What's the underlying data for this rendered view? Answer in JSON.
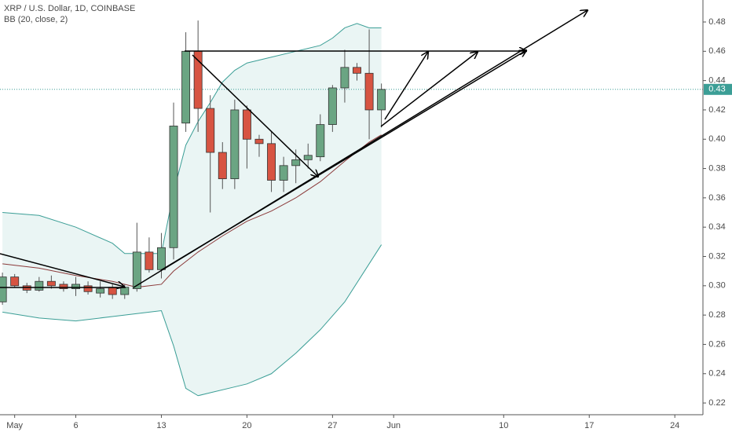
{
  "chart_data": {
    "type": "candlestick",
    "title": "XRP / U.S. Dollar, 1D, COINBASE",
    "subtitle": "BB (20, close, 2)",
    "x": [
      0,
      1,
      2,
      3,
      4,
      5,
      6,
      7,
      8,
      9,
      10,
      11,
      12,
      13,
      14,
      15,
      16,
      17,
      18,
      19,
      20,
      21,
      22,
      23,
      24,
      25,
      26,
      27,
      28,
      29,
      30,
      31
    ],
    "open": [
      0.289,
      0.306,
      0.3,
      0.297,
      0.303,
      0.301,
      0.298,
      0.3,
      0.295,
      0.299,
      0.294,
      0.298,
      0.323,
      0.311,
      0.326,
      0.411,
      0.46,
      0.421,
      0.391,
      0.373,
      0.42,
      0.4,
      0.397,
      0.372,
      0.382,
      0.386,
      0.388,
      0.41,
      0.435,
      0.449,
      0.445,
      0.42
    ],
    "high": [
      0.309,
      0.308,
      0.302,
      0.306,
      0.307,
      0.303,
      0.306,
      0.303,
      0.303,
      0.301,
      0.301,
      0.343,
      0.333,
      0.336,
      0.425,
      0.473,
      0.481,
      0.43,
      0.398,
      0.427,
      0.423,
      0.403,
      0.405,
      0.388,
      0.393,
      0.397,
      0.417,
      0.437,
      0.461,
      0.452,
      0.475,
      0.438
    ],
    "low": [
      0.287,
      0.299,
      0.295,
      0.296,
      0.298,
      0.296,
      0.293,
      0.294,
      0.292,
      0.291,
      0.291,
      0.296,
      0.309,
      0.305,
      0.318,
      0.405,
      0.405,
      0.35,
      0.366,
      0.366,
      0.38,
      0.388,
      0.364,
      0.364,
      0.37,
      0.38,
      0.385,
      0.405,
      0.425,
      0.44,
      0.4,
      0.408
    ],
    "close": [
      0.306,
      0.3,
      0.297,
      0.303,
      0.3,
      0.298,
      0.301,
      0.296,
      0.298,
      0.294,
      0.299,
      0.323,
      0.311,
      0.326,
      0.409,
      0.46,
      0.421,
      0.391,
      0.373,
      0.42,
      0.4,
      0.397,
      0.372,
      0.382,
      0.386,
      0.389,
      0.41,
      0.435,
      0.449,
      0.445,
      0.42,
      0.434
    ],
    "up_color": "#6ba583",
    "down_color": "#d75442",
    "bands": {
      "color": "#3b9e96",
      "fill": "#eaf5f4",
      "basis_color": "#8b3a3a",
      "upper": {
        "x": [
          0,
          3,
          6,
          9,
          10,
          13,
          14,
          15,
          16,
          17,
          18,
          19,
          20,
          22,
          24,
          26,
          27,
          28,
          29,
          30,
          31
        ],
        "values": [
          0.35,
          0.348,
          0.34,
          0.329,
          0.322,
          0.322,
          0.364,
          0.396,
          0.412,
          0.425,
          0.439,
          0.447,
          0.452,
          0.456,
          0.46,
          0.464,
          0.469,
          0.476,
          0.479,
          0.476,
          0.476
        ]
      },
      "basis": {
        "x": [
          0,
          3,
          6,
          9,
          11,
          13,
          14,
          16,
          18,
          20,
          22,
          24,
          26,
          28,
          30,
          31
        ],
        "values": [
          0.315,
          0.312,
          0.307,
          0.303,
          0.299,
          0.301,
          0.31,
          0.323,
          0.334,
          0.344,
          0.351,
          0.36,
          0.371,
          0.385,
          0.398,
          0.403
        ]
      },
      "lower": {
        "x": [
          0,
          3,
          6,
          9,
          10,
          12,
          13,
          14,
          15,
          16,
          17,
          19,
          20,
          22,
          24,
          26,
          28,
          30,
          31
        ],
        "values": [
          0.282,
          0.278,
          0.276,
          0.279,
          0.28,
          0.282,
          0.283,
          0.259,
          0.23,
          0.225,
          0.227,
          0.231,
          0.233,
          0.24,
          0.254,
          0.27,
          0.289,
          0.315,
          0.328
        ]
      }
    },
    "last_price": {
      "value": 0.434,
      "label": "0.43"
    },
    "xlim": [
      -0.2,
      57.3
    ],
    "xticks": [
      {
        "value": 1,
        "label": "May"
      },
      6,
      13,
      20,
      27,
      {
        "value": 32,
        "label": "Jun"
      },
      {
        "value": 41,
        "label": "10"
      },
      {
        "value": 48,
        "label": "17"
      },
      {
        "value": 55,
        "label": "24"
      }
    ],
    "ylim": [
      0.212,
      0.495
    ],
    "yticks": [
      0.22,
      0.24,
      0.26,
      0.28,
      {
        "value": 0.3,
        "label": "0.30"
      },
      0.32,
      0.34,
      0.36,
      0.38,
      {
        "value": 0.4,
        "label": "0.40"
      },
      0.42,
      0.44,
      0.46,
      0.48
    ],
    "grid": false
  }
}
